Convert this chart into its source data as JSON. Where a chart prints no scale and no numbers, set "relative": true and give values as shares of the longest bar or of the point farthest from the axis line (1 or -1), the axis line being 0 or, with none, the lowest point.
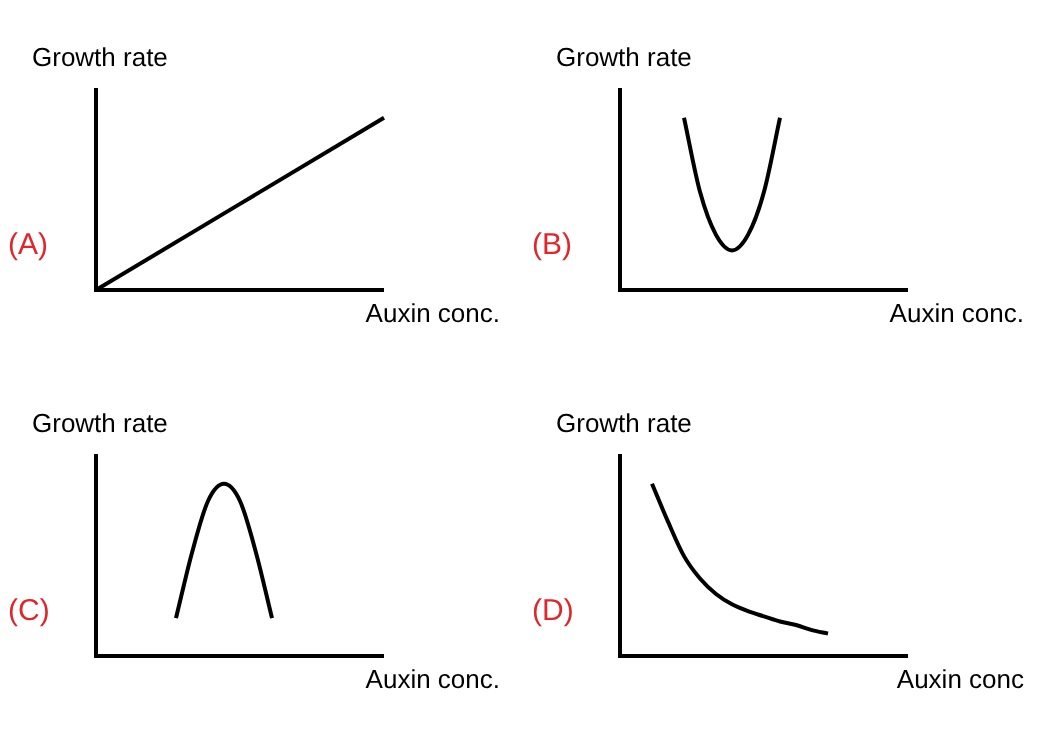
{
  "chart_data": [
    {
      "type": "line",
      "relative": true,
      "ylabel": "Growth rate",
      "xlabel": "Auxin conc.",
      "annotations": [
        "(A)"
      ],
      "tick_labels": false,
      "categories": [
        null,
        null
      ],
      "series": [
        {
          "color": "#000000",
          "values": [
            0,
            1
          ]
        }
      ]
    },
    {
      "type": "line",
      "relative": true,
      "ylabel": "Growth rate",
      "xlabel": "Auxin conc.",
      "annotations": [
        "(B)"
      ],
      "tick_labels": false,
      "categories": [
        null,
        null,
        null,
        null,
        null,
        null,
        null,
        null,
        null,
        null,
        null,
        null,
        null,
        null,
        null,
        null,
        null,
        null,
        null
      ],
      "series": [
        {
          "color": "#000000",
          "values": [
            null,
            null,
            null,
            null,
            1,
            0.57,
            0.32,
            0.23,
            0.32,
            0.57,
            1,
            null,
            null,
            null,
            null,
            null,
            null,
            null,
            null
          ]
        }
      ]
    },
    {
      "type": "line",
      "relative": true,
      "ylabel": "Growth rate",
      "xlabel": "Auxin conc.",
      "annotations": [
        "(C)"
      ],
      "tick_labels": false,
      "categories": [
        null,
        null,
        null,
        null,
        null,
        null,
        null,
        null,
        null,
        null,
        null,
        null,
        null,
        null,
        null,
        null,
        null,
        null,
        null
      ],
      "series": [
        {
          "color": "#000000",
          "values": [
            null,
            null,
            null,
            null,
            null,
            0.22,
            0.6,
            0.9,
            1,
            0.9,
            0.6,
            0.22,
            null,
            null,
            null,
            null,
            null,
            null,
            null
          ]
        }
      ]
    },
    {
      "type": "line",
      "relative": true,
      "ylabel": "Growth rate",
      "xlabel": "Auxin conc",
      "annotations": [
        "(D)"
      ],
      "tick_labels": false,
      "categories": [
        null,
        null,
        null,
        null,
        null,
        null,
        null,
        null,
        null,
        null,
        null,
        null,
        null,
        null,
        null,
        null,
        null,
        null,
        null
      ],
      "series": [
        {
          "color": "#000000",
          "values": [
            null,
            null,
            1,
            0.78,
            0.58,
            0.45,
            0.36,
            0.3,
            0.26,
            0.23,
            0.2,
            0.18,
            0.15,
            0.13,
            null,
            null,
            null,
            null,
            null
          ]
        }
      ]
    }
  ]
}
